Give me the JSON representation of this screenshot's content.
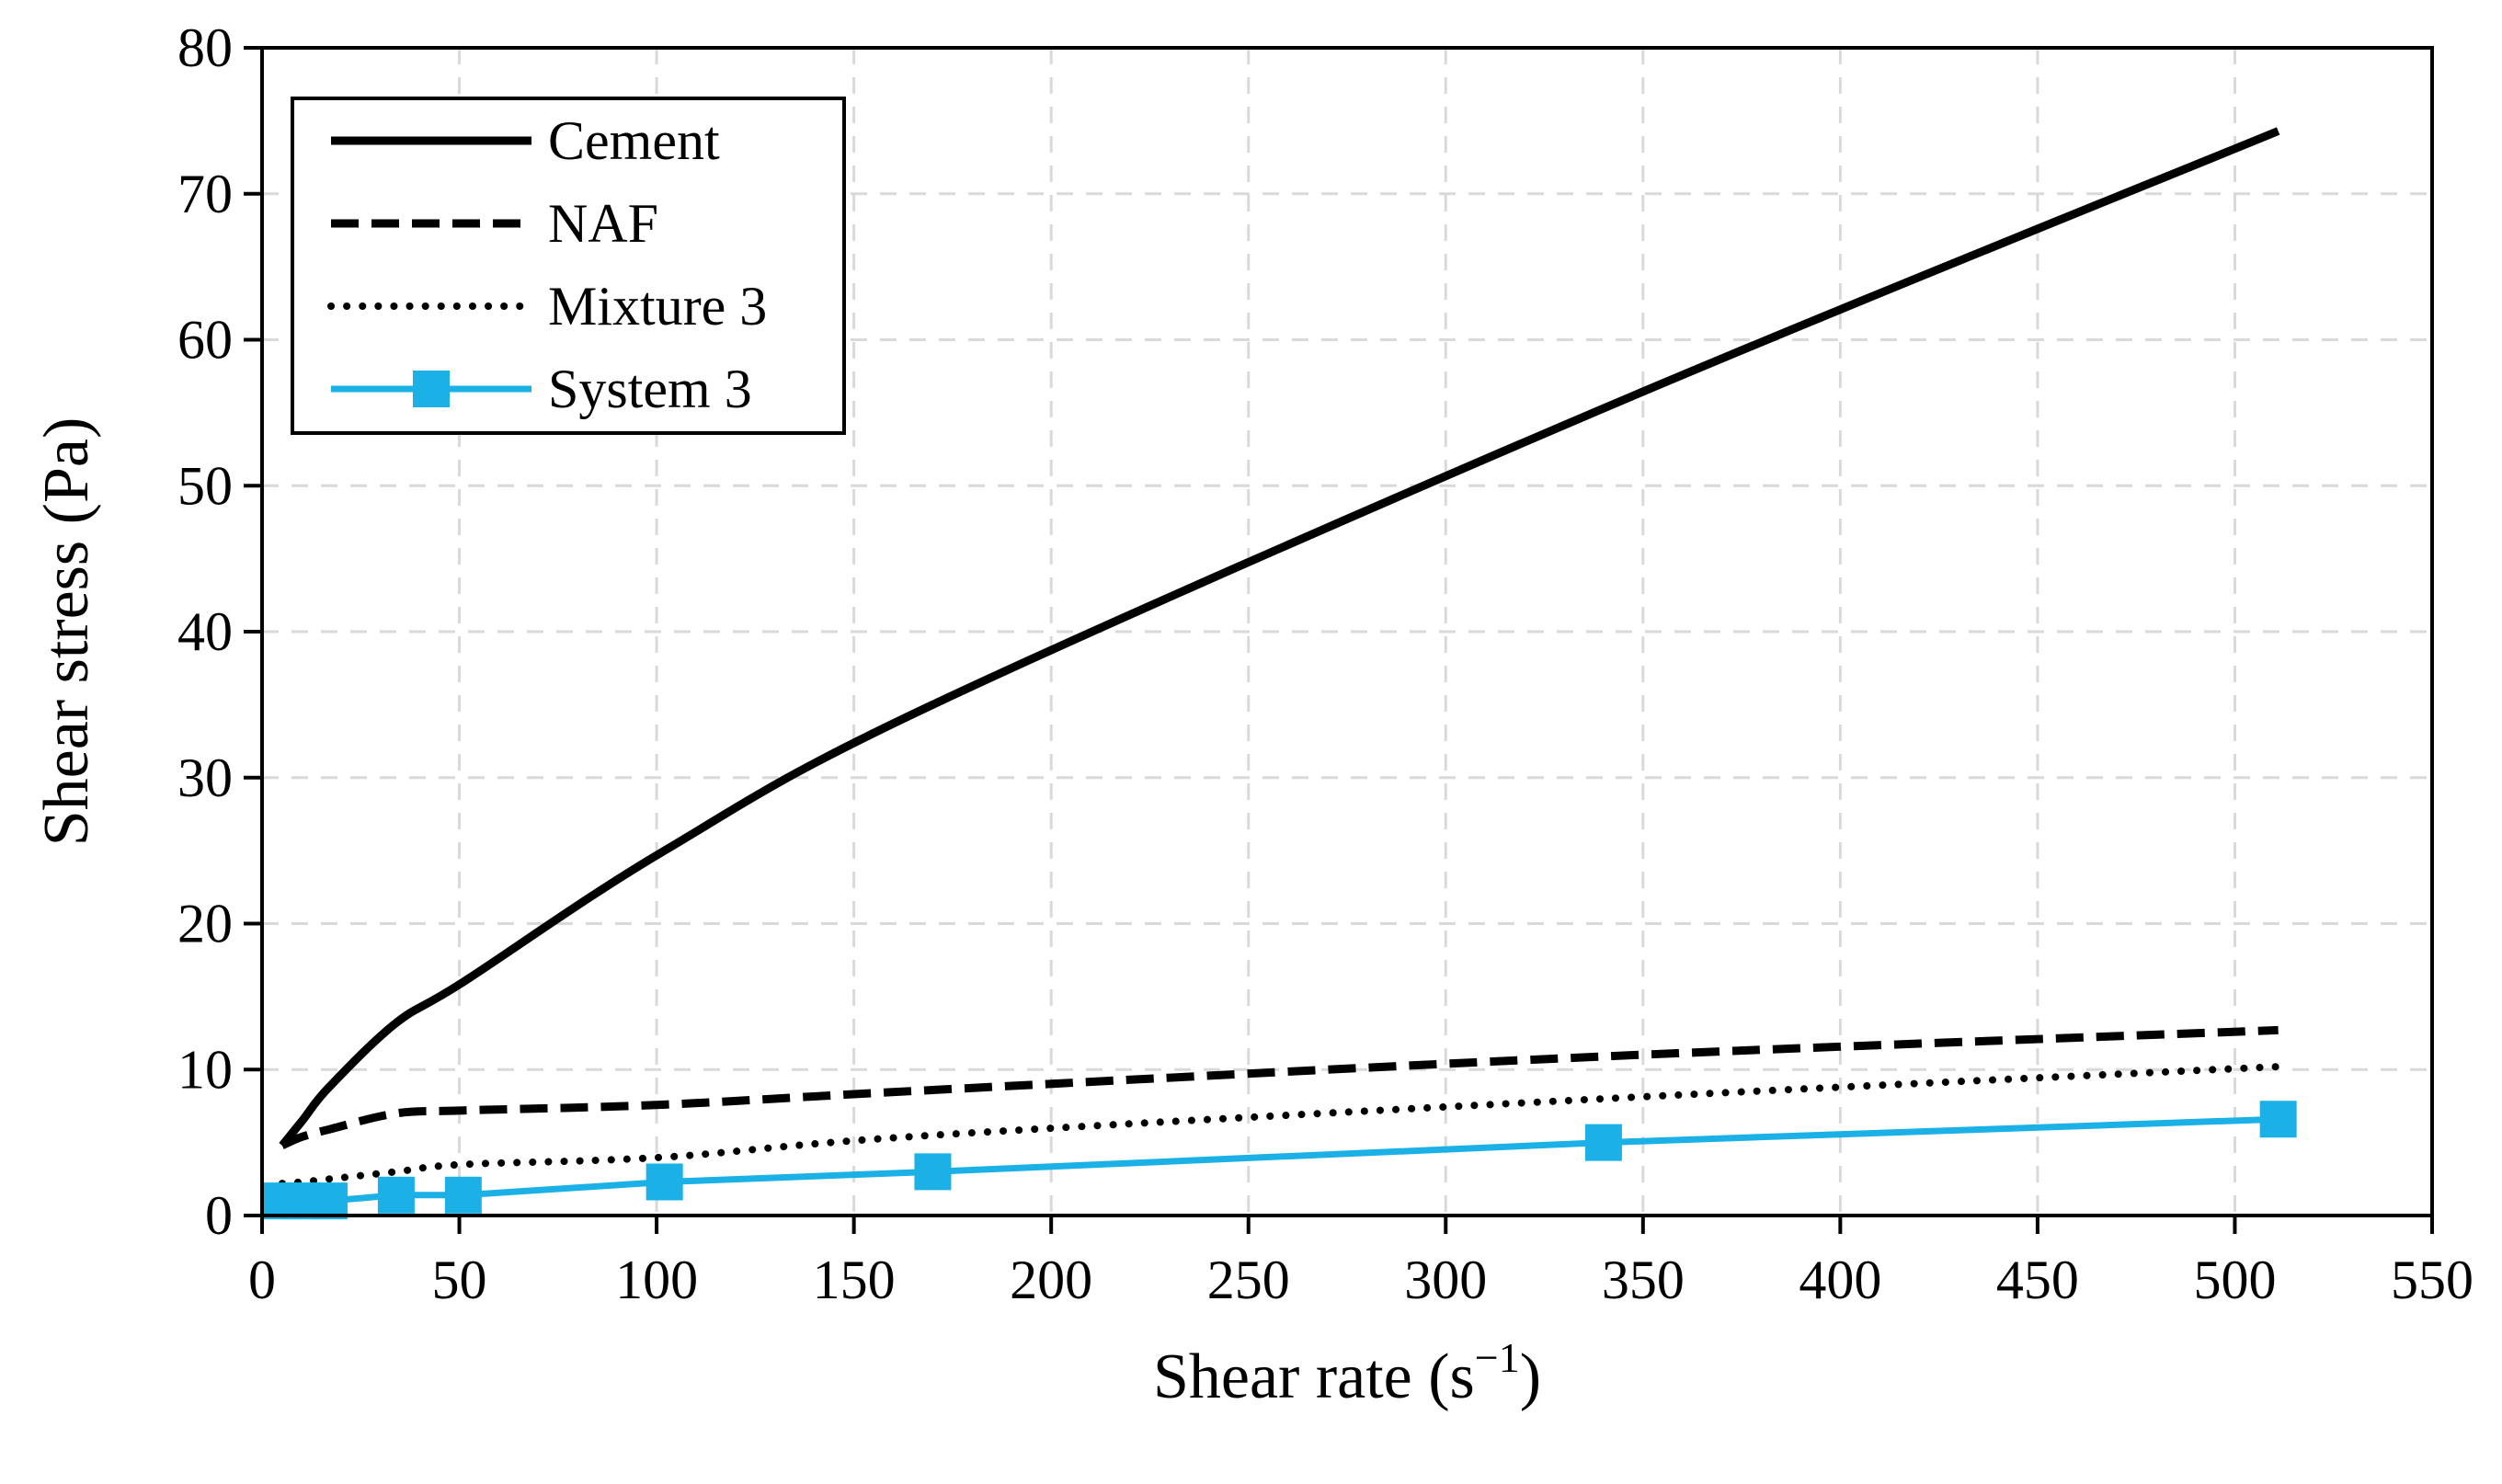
{
  "chart_data": {
    "type": "line",
    "title": "",
    "xlabel": "Shear rate (s",
    "xlabel_superscript": "−1",
    "xlabel_suffix": ")",
    "ylabel": "Shear stress (Pa)",
    "xlim": [
      0,
      550
    ],
    "ylim": [
      0,
      80
    ],
    "xticks": [
      0,
      50,
      100,
      150,
      200,
      250,
      300,
      350,
      400,
      450,
      500,
      550
    ],
    "yticks": [
      0,
      10,
      20,
      30,
      40,
      50,
      60,
      70,
      80
    ],
    "xtick_labels": [
      "0",
      "50",
      "100",
      "150",
      "200",
      "250",
      "300",
      "350",
      "400",
      "450",
      "500",
      "550"
    ],
    "ytick_labels": [
      "0",
      "10",
      "20",
      "30",
      "40",
      "50",
      "60",
      "70",
      "80"
    ],
    "grid": true,
    "legend_position": "top-left",
    "series": [
      {
        "name": "Cement",
        "style": "solid",
        "color": "#000000",
        "x": [
          5.1,
          10.2,
          17,
          34,
          51,
          102,
          170,
          340,
          511
        ],
        "y": [
          4.8,
          6.5,
          8.8,
          13.2,
          16.0,
          25.0,
          35.0,
          55.3,
          74.3
        ]
      },
      {
        "name": "NAF",
        "style": "dashed",
        "color": "#000000",
        "x": [
          5.1,
          10.2,
          17,
          34,
          51,
          102,
          170,
          340,
          511
        ],
        "y": [
          4.8,
          5.4,
          5.9,
          7.0,
          7.2,
          7.6,
          8.6,
          10.9,
          12.7
        ]
      },
      {
        "name": "Mixture 3",
        "style": "dotted",
        "color": "#000000",
        "x": [
          5.1,
          10.2,
          17,
          34,
          51,
          102,
          170,
          340,
          511
        ],
        "y": [
          2.2,
          2.3,
          2.5,
          3.0,
          3.5,
          4.0,
          5.5,
          8.0,
          10.2
        ]
      },
      {
        "name": "System 3",
        "style": "solid-markers",
        "color": "#1BB1E7",
        "x": [
          5.1,
          10.2,
          17,
          34,
          51,
          102,
          170,
          340,
          511
        ],
        "y": [
          1.0,
          1.0,
          1.0,
          1.4,
          1.4,
          2.3,
          3.0,
          5.0,
          6.6
        ]
      }
    ]
  }
}
